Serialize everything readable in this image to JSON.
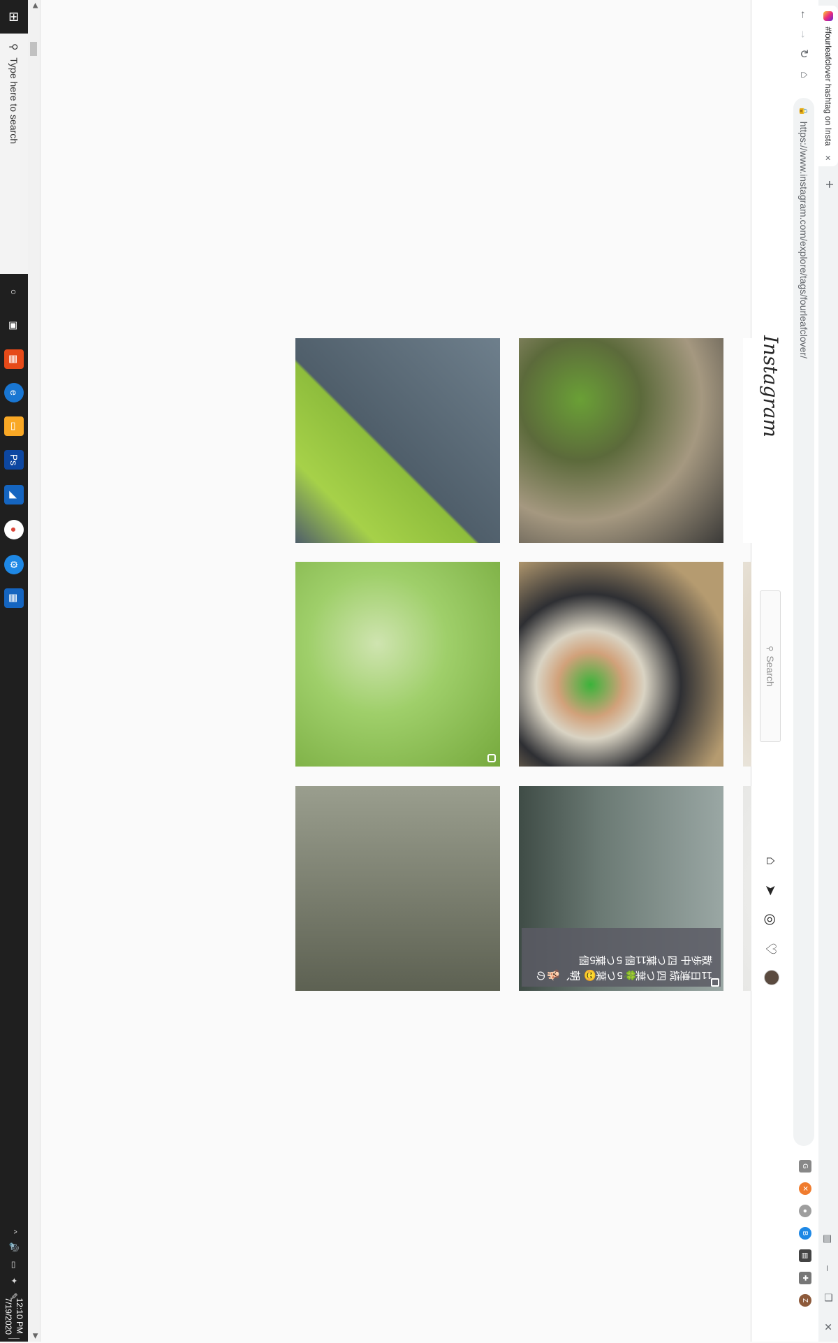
{
  "browser": {
    "tab_title": "#fourleafclover hashtag on Insta",
    "new_tab_icon": "+",
    "url": "https://www.instagram.com/explore/tags/fourleafclover/",
    "close_icon": "×",
    "minimize_icon": "–",
    "restore_icon": "❐",
    "close_window_icon": "✕"
  },
  "taskbar": {
    "search_placeholder": "Type here to search",
    "time": "12:10 PM",
    "date": "7/19/2020"
  },
  "instagram": {
    "logo": "Instagram",
    "search_placeholder": "Search"
  },
  "posts": [
    {
      "caption": null
    },
    {
      "caption": null
    },
    {
      "caption": null
    },
    {
      "caption": null
    },
    {
      "caption": null
    },
    {
      "caption": null
    },
    {
      "caption": null
    },
    {
      "caption": null
    },
    {
      "caption": "11日連続 四つ葉🍀5つ葉😊 朝、🐕の散歩中 四つ葉11個 5つ葉5個"
    },
    {
      "caption": null
    },
    {
      "caption": null
    },
    {
      "caption": null
    },
    {
      "caption": null
    },
    {
      "caption": null
    },
    {
      "caption": null
    }
  ],
  "colors": {
    "taskbar": "#1f1f1f",
    "tab_bar": "#f1f3f4",
    "page_bg": "#fafafa",
    "ig_border": "#dbdbdb"
  }
}
